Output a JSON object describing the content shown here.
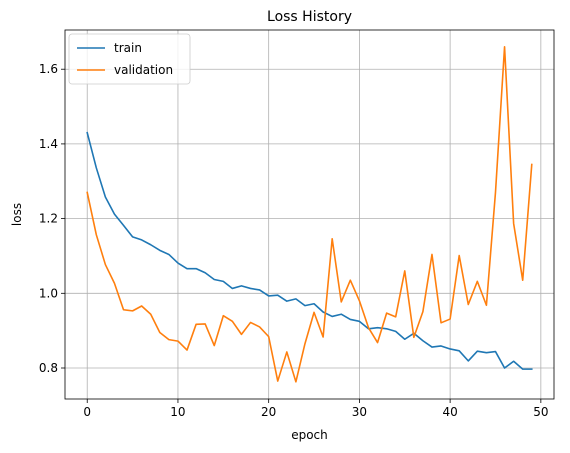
{
  "chart_data": {
    "type": "line",
    "title": "Loss History",
    "xlabel": "epoch",
    "ylabel": "loss",
    "xlim": [
      -2.45,
      51.45
    ],
    "ylim": [
      0.717,
      1.705
    ],
    "xticks": [
      0,
      10,
      20,
      30,
      40,
      50
    ],
    "yticks": [
      0.8,
      1.0,
      1.2,
      1.4,
      1.6
    ],
    "ytick_labels": [
      "0.8",
      "1.0",
      "1.2",
      "1.4",
      "1.6"
    ],
    "grid": true,
    "legend_position": "upper-left",
    "series": [
      {
        "name": "train",
        "color": "#1f77b4",
        "x": [
          0,
          1,
          2,
          3,
          4,
          5,
          6,
          7,
          8,
          9,
          10,
          11,
          12,
          13,
          14,
          15,
          16,
          17,
          18,
          19,
          20,
          21,
          22,
          23,
          24,
          25,
          26,
          27,
          28,
          29,
          30,
          31,
          32,
          33,
          34,
          35,
          36,
          37,
          38,
          39,
          40,
          41,
          42,
          43,
          44,
          45,
          46,
          47,
          48,
          49
        ],
        "values": [
          1.43,
          1.336,
          1.258,
          1.212,
          1.182,
          1.151,
          1.143,
          1.13,
          1.115,
          1.104,
          1.081,
          1.066,
          1.066,
          1.055,
          1.037,
          1.032,
          1.013,
          1.02,
          1.013,
          1.009,
          0.993,
          0.995,
          0.979,
          0.985,
          0.967,
          0.972,
          0.95,
          0.938,
          0.944,
          0.93,
          0.925,
          0.905,
          0.908,
          0.905,
          0.898,
          0.877,
          0.893,
          0.873,
          0.856,
          0.859,
          0.851,
          0.846,
          0.819,
          0.845,
          0.841,
          0.844,
          0.8,
          0.818,
          0.797,
          0.797
        ]
      },
      {
        "name": "validation",
        "color": "#ff7f0e",
        "x": [
          0,
          1,
          2,
          3,
          4,
          5,
          6,
          7,
          8,
          9,
          10,
          11,
          12,
          13,
          14,
          15,
          16,
          17,
          18,
          19,
          20,
          21,
          22,
          23,
          24,
          25,
          26,
          27,
          28,
          29,
          30,
          31,
          32,
          33,
          34,
          35,
          36,
          37,
          38,
          39,
          40,
          41,
          42,
          43,
          44,
          45,
          46,
          47,
          48,
          49
        ],
        "values": [
          1.27,
          1.157,
          1.077,
          1.027,
          0.956,
          0.953,
          0.966,
          0.944,
          0.895,
          0.876,
          0.872,
          0.848,
          0.917,
          0.918,
          0.86,
          0.94,
          0.925,
          0.89,
          0.922,
          0.91,
          0.884,
          0.765,
          0.843,
          0.763,
          0.865,
          0.949,
          0.883,
          1.146,
          0.977,
          1.035,
          0.98,
          0.908,
          0.868,
          0.947,
          0.937,
          1.06,
          0.882,
          0.951,
          1.104,
          0.921,
          0.931,
          1.101,
          0.97,
          1.032,
          0.968,
          1.27,
          1.66,
          1.187,
          1.035,
          1.345
        ]
      }
    ]
  }
}
